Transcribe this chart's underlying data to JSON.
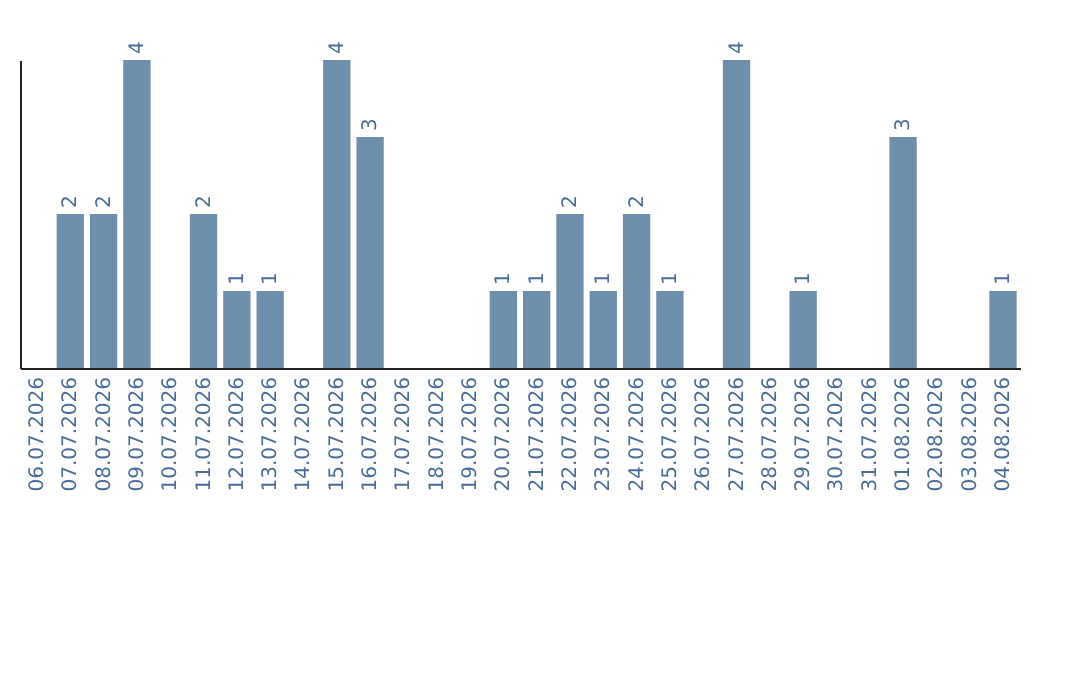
{
  "chart_data": {
    "type": "bar",
    "categories": [
      "06.07.2026",
      "07.07.2026",
      "08.07.2026",
      "09.07.2026",
      "10.07.2026",
      "11.07.2026",
      "12.07.2026",
      "13.07.2026",
      "14.07.2026",
      "15.07.2026",
      "16.07.2026",
      "17.07.2026",
      "18.07.2026",
      "19.07.2026",
      "20.07.2026",
      "21.07.2026",
      "22.07.2026",
      "23.07.2026",
      "24.07.2026",
      "25.07.2026",
      "26.07.2026",
      "27.07.2026",
      "28.07.2026",
      "29.07.2026",
      "30.07.2026",
      "31.07.2026",
      "01.08.2026",
      "02.08.2026",
      "03.08.2026",
      "04.08.2026"
    ],
    "values": [
      null,
      2,
      2,
      4,
      null,
      2,
      1,
      1,
      null,
      4,
      3,
      null,
      null,
      null,
      1,
      1,
      2,
      1,
      2,
      1,
      null,
      4,
      null,
      1,
      null,
      null,
      3,
      null,
      null,
      1
    ],
    "color": "#6d8fab",
    "ylim": [
      0,
      4
    ],
    "data_labels": true,
    "tick_labels": "x"
  }
}
